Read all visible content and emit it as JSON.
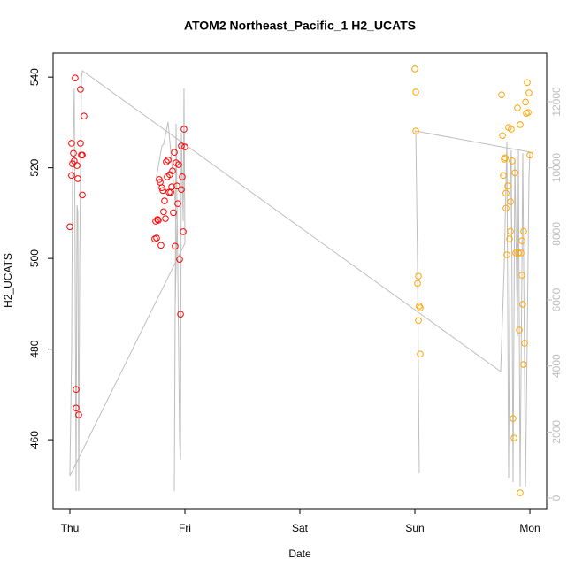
{
  "chart_data": {
    "type": "scatter",
    "title": "ATOM2 Northeast_Pacific_1 H2_UCATS",
    "x_label": "Date",
    "y_label": "H2_UCATS",
    "xlim": [
      -0.146,
      4.146
    ],
    "ylim": [
      444.8,
      545.3
    ],
    "y2lim": [
      -321,
      13473
    ],
    "xticks": [
      {
        "value": 0,
        "label": "Thu"
      },
      {
        "value": 1,
        "label": "Fri"
      },
      {
        "value": 2,
        "label": "Sat"
      },
      {
        "value": 3,
        "label": "Sun"
      },
      {
        "value": 4,
        "label": "Mon"
      }
    ],
    "yticks": [
      460,
      480,
      500,
      520,
      540
    ],
    "y2ticks": [
      0,
      2000,
      4000,
      6000,
      8000,
      10000,
      12000
    ],
    "y2_color": "#bebebe",
    "series": [
      {
        "color": "#ff0000",
        "x": [
          0,
          0.015,
          0.015,
          0.023,
          0.031,
          0.038,
          0.046,
          0.054,
          0.054,
          0.062,
          0.069,
          0.077,
          0.092,
          0.092,
          0.1,
          0.108,
          0.108,
          0.123,
          0.738,
          0.746,
          0.754,
          0.762,
          0.769,
          0.777,
          0.785,
          0.792,
          0.8,
          0.808,
          0.815,
          0.823,
          0.831,
          0.838,
          0.846,
          0.854,
          0.862,
          0.869,
          0.877,
          0.885,
          0.892,
          0.9,
          0.908,
          0.915,
          0.923,
          0.931,
          0.938,
          0.946,
          0.954,
          0.962,
          0.969,
          0.969,
          0.977,
          0.985,
          0.992,
          1.0
        ],
        "values": [
          507.0,
          525.4,
          518.3,
          520.9,
          523.2,
          521.5,
          539.8,
          471.1,
          467.0,
          520.5,
          517.6,
          465.5,
          537.3,
          525.4,
          522.8,
          522.8,
          514.0,
          531.4,
          504.3,
          508.2,
          504.5,
          508.6,
          508.4,
          517.4,
          516.8,
          502.9,
          515.6,
          515.0,
          510.3,
          512.7,
          508.8,
          521.3,
          518.0,
          521.7,
          514.6,
          518.5,
          514.6,
          515.8,
          519.3,
          510.1,
          523.4,
          502.7,
          521.1,
          516.0,
          512.1,
          520.7,
          499.8,
          487.7,
          515.2,
          524.8,
          518.0,
          505.9,
          528.5,
          524.6
        ]
      },
      {
        "color": "#ffa500",
        "x": [
          3.0,
          3.008,
          3.008,
          3.031,
          3.023,
          3.038,
          3.046,
          3.031,
          3.046,
          3.754,
          3.762,
          3.769,
          3.777,
          3.785,
          3.792,
          3.792,
          3.8,
          3.808,
          3.815,
          3.823,
          3.831,
          3.831,
          3.838,
          3.846,
          3.854,
          3.862,
          3.869,
          3.877,
          3.892,
          3.9,
          3.908,
          3.915,
          3.923,
          3.931,
          3.931,
          3.938,
          3.946,
          3.946,
          3.954,
          3.962,
          3.969,
          3.977,
          3.985,
          3.992,
          4.0,
          3.915
        ],
        "values": [
          541.8,
          536.7,
          528.1,
          496.1,
          494.5,
          489.5,
          489.1,
          486.3,
          478.9,
          536.1,
          527.1,
          518.3,
          521.9,
          522.2,
          514.4,
          511.1,
          500.8,
          516.0,
          528.9,
          504.3,
          512.5,
          506.0,
          528.5,
          521.5,
          464.7,
          460.4,
          518.9,
          501.2,
          533.2,
          501.2,
          484.2,
          529.5,
          501.2,
          496.3,
          503.9,
          489.9,
          506.0,
          476.6,
          481.3,
          534.5,
          532.0,
          538.8,
          532.2,
          536.5,
          522.8,
          448.3
        ]
      },
      {
        "type": "line",
        "axis": "y2",
        "color": "#bebebe",
        "x": [
          3.038,
          3.023,
          3.008,
          3.0,
          4.0,
          3.992,
          3.977,
          3.962,
          3.938,
          3.931,
          3.915,
          3.9,
          3.892,
          3.869,
          3.854,
          3.838,
          3.831,
          3.815,
          3.8,
          3.777,
          3.746,
          0.108,
          0.1,
          0.085,
          0.077,
          0.069,
          0.062,
          0.054,
          0.046,
          0.038,
          0.023,
          0.015,
          0,
          1.0,
          0.992,
          0.985,
          0.969,
          0.962,
          0.954,
          0.938,
          0.923,
          0.908,
          0.915,
          0.931,
          0.854,
          0.815,
          0.8,
          0.746
        ],
        "values": [
          750,
          7045,
          11064,
          11118,
          10475,
          9725,
          4903,
          348,
          10448,
          7046,
          348,
          10528,
          4903,
          10261,
          482,
          10528,
          9725,
          616,
          10796,
          7046,
          3831,
          12940,
          12672,
          7046,
          214,
          8653,
          8868,
          214,
          7046,
          12404,
          9725,
          4367,
          670,
          7716,
          12404,
          8385,
          11064,
          1152,
          1688,
          7046,
          11332,
          214,
          5706,
          8385,
          11386,
          10716,
          10662,
          9591
        ]
      }
    ]
  }
}
